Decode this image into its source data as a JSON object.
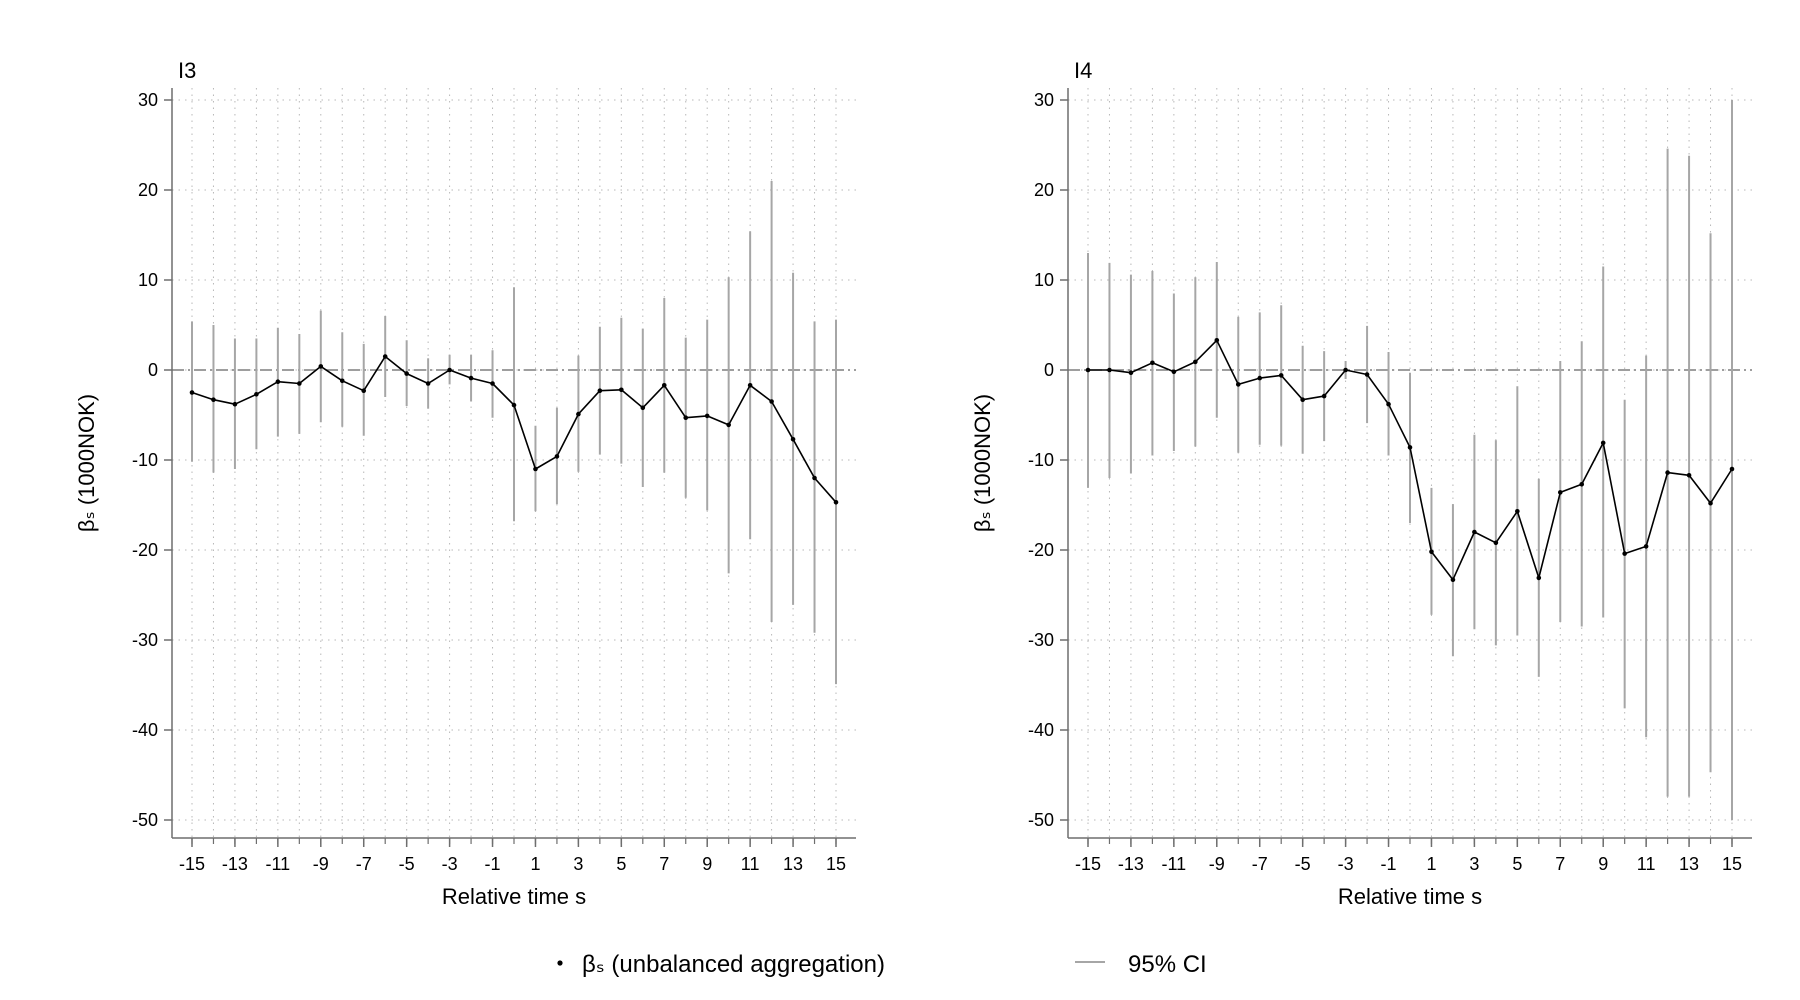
{
  "legend": {
    "items": [
      {
        "label": "βₛ (unbalanced aggregation)",
        "marker": "dot",
        "color": "#000000"
      },
      {
        "label": "95% CI",
        "marker": "line",
        "color": "#a6a6a6"
      }
    ]
  },
  "colors": {
    "line": "#000000",
    "ci": "#a6a6a6",
    "grid": "#b8b8b8",
    "axis": "#6e6e6e",
    "zero_line": "#7f7f7f"
  },
  "chart_data": [
    {
      "type": "line",
      "title": "I3",
      "xlabel": "Relative time s",
      "ylabel": "βₛ (1000NOK)",
      "xlim": [
        -15,
        15
      ],
      "ylim": [
        -50,
        30
      ],
      "xticks": [
        -15,
        -13,
        -11,
        -9,
        -7,
        -5,
        -3,
        -1,
        1,
        3,
        5,
        7,
        9,
        11,
        13,
        15
      ],
      "yticks": [
        30,
        20,
        10,
        0,
        -10,
        -20,
        -30,
        -40,
        -50
      ],
      "grid": true,
      "reference_line_y": 0,
      "x": [
        -15,
        -14,
        -13,
        -12,
        -11,
        -10,
        -9,
        -8,
        -7,
        -6,
        -5,
        -4,
        -3,
        -2,
        -1,
        0,
        1,
        2,
        3,
        4,
        5,
        6,
        7,
        8,
        9,
        10,
        11,
        12,
        13,
        14,
        15
      ],
      "series": [
        {
          "name": "βₛ (unbalanced aggregation)",
          "values": [
            -2.5,
            -3.3,
            -3.8,
            -2.7,
            -1.3,
            -1.5,
            0.4,
            -1.2,
            -2.3,
            1.5,
            -0.4,
            -1.5,
            0.0,
            -0.9,
            -1.5,
            -3.9,
            -11.0,
            -9.6,
            -4.9,
            -2.3,
            -2.2,
            -4.2,
            -1.7,
            -5.3,
            -5.1,
            -6.1,
            -1.7,
            -3.5,
            -7.7,
            -12.0,
            -14.7
          ],
          "ci_low": [
            -10.2,
            -11.4,
            -11.0,
            -8.8,
            -7.4,
            -7.1,
            -5.8,
            -6.3,
            -7.3,
            -3.0,
            -4.0,
            -4.3,
            -1.6,
            -3.5,
            -5.3,
            -16.8,
            -15.7,
            -14.9,
            -11.3,
            -9.4,
            -10.4,
            -13.0,
            -11.4,
            -14.2,
            -15.6,
            -22.6,
            -18.8,
            -28.0,
            -26.1,
            -29.2,
            -34.9
          ],
          "ci_high": [
            5.4,
            5.0,
            3.5,
            3.5,
            4.7,
            4.0,
            6.6,
            4.2,
            2.9,
            6.0,
            3.3,
            1.3,
            1.7,
            1.7,
            2.2,
            9.2,
            -6.2,
            -4.2,
            1.6,
            4.8,
            5.8,
            4.6,
            8.0,
            3.6,
            5.6,
            10.3,
            15.4,
            21.0,
            10.8,
            5.4,
            5.6
          ]
        }
      ]
    },
    {
      "type": "line",
      "title": "I4",
      "xlabel": "Relative time s",
      "ylabel": "βₛ (1000NOK)",
      "xlim": [
        -15,
        15
      ],
      "ylim": [
        -50,
        30
      ],
      "xticks": [
        -15,
        -13,
        -11,
        -9,
        -7,
        -5,
        -3,
        -1,
        1,
        3,
        5,
        7,
        9,
        11,
        13,
        15
      ],
      "yticks": [
        30,
        20,
        10,
        0,
        -10,
        -20,
        -30,
        -40,
        -50
      ],
      "grid": true,
      "reference_line_y": 0,
      "x": [
        -15,
        -14,
        -13,
        -12,
        -11,
        -10,
        -9,
        -8,
        -7,
        -6,
        -5,
        -4,
        -3,
        -2,
        -1,
        0,
        1,
        2,
        3,
        4,
        5,
        6,
        7,
        8,
        9,
        10,
        11,
        12,
        13,
        14,
        15
      ],
      "series": [
        {
          "name": "βₛ (unbalanced aggregation)",
          "values": [
            0.0,
            0.0,
            -0.3,
            0.8,
            -0.2,
            0.9,
            3.3,
            -1.6,
            -0.9,
            -0.6,
            -3.3,
            -2.9,
            0.0,
            -0.5,
            -3.8,
            -8.6,
            -20.2,
            -23.3,
            -18.0,
            -19.2,
            -15.7,
            -23.1,
            -13.6,
            -12.7,
            -8.1,
            -20.4,
            -19.6,
            -11.4,
            -11.7,
            -14.8,
            -11.0
          ],
          "ci_low": [
            -13.1,
            -12.0,
            -11.5,
            -9.5,
            -9.0,
            -8.5,
            -5.3,
            -9.2,
            -8.3,
            -8.4,
            -9.3,
            -7.9,
            -1.0,
            -5.9,
            -9.5,
            -17.0,
            -27.2,
            -31.8,
            -28.8,
            -30.6,
            -29.5,
            -34.1,
            -28.0,
            -28.5,
            -27.5,
            -37.6,
            -40.8,
            -47.4,
            -47.4,
            -44.7,
            -50.0
          ],
          "ci_high": [
            13.0,
            11.9,
            10.6,
            11.0,
            8.5,
            10.3,
            12.0,
            5.9,
            6.4,
            7.2,
            2.7,
            2.1,
            1.0,
            4.9,
            2.0,
            -0.3,
            -13.1,
            -14.9,
            -7.2,
            -7.8,
            -1.8,
            -12.1,
            1.0,
            3.2,
            11.5,
            -3.3,
            1.6,
            24.6,
            23.8,
            15.2,
            30.0
          ]
        }
      ]
    }
  ]
}
